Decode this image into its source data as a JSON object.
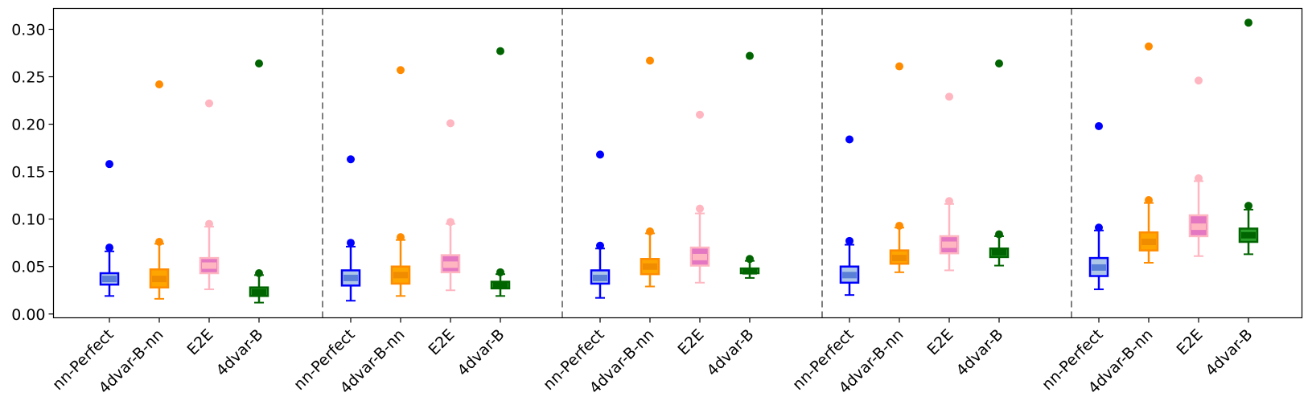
{
  "chart_data": {
    "type": "box",
    "title": "",
    "xlabel": "",
    "ylabel": "",
    "ylim": [
      -0.004,
      0.322
    ],
    "y_ticks": [
      0.0,
      0.05,
      0.1,
      0.15,
      0.2,
      0.25,
      0.3
    ],
    "y_tick_labels": [
      "0.00",
      "0.05",
      "0.10",
      "0.15",
      "0.20",
      "0.25",
      "0.30"
    ],
    "grid": false,
    "legend": "none",
    "group_separators": "dashed vertical lines between groups",
    "categories": [
      "nn-Perfect",
      "4dvar-B-nn",
      "E2E",
      "4dvar-B"
    ],
    "styles": {
      "nn-Perfect": {
        "edge": "#0000ff",
        "fill": "#aec7e8",
        "median_band": "#5a7fd6"
      },
      "4dvar-B-nn": {
        "edge": "#ff8c00",
        "fill": "#ffa500",
        "median_band": "#f08c00"
      },
      "E2E": {
        "edge": "#ffb6c1",
        "fill": "#e377c2",
        "median_band": "#ffb6c1"
      },
      "4dvar-B": {
        "edge": "#006400",
        "fill": "#2ca02c",
        "median_band": "#006400"
      }
    },
    "groups": [
      {
        "boxes": [
          {
            "name": "nn-Perfect",
            "whislo": 0.019,
            "q1": 0.031,
            "med": 0.037,
            "q3": 0.043,
            "whishi": 0.066,
            "p95": 0.07,
            "max": 0.158
          },
          {
            "name": "4dvar-B-nn",
            "whislo": 0.016,
            "q1": 0.028,
            "med": 0.037,
            "q3": 0.047,
            "whishi": 0.074,
            "p95": 0.076,
            "max": 0.242
          },
          {
            "name": "E2E",
            "whislo": 0.026,
            "q1": 0.043,
            "med": 0.051,
            "q3": 0.059,
            "whishi": 0.092,
            "p95": 0.095,
            "max": 0.222
          },
          {
            "name": "4dvar-B",
            "whislo": 0.012,
            "q1": 0.019,
            "med": 0.023,
            "q3": 0.028,
            "whishi": 0.041,
            "p95": 0.043,
            "max": 0.264
          }
        ]
      },
      {
        "boxes": [
          {
            "name": "nn-Perfect",
            "whislo": 0.014,
            "q1": 0.03,
            "med": 0.038,
            "q3": 0.046,
            "whishi": 0.071,
            "p95": 0.075,
            "max": 0.163
          },
          {
            "name": "4dvar-B-nn",
            "whislo": 0.019,
            "q1": 0.032,
            "med": 0.041,
            "q3": 0.05,
            "whishi": 0.078,
            "p95": 0.081,
            "max": 0.257
          },
          {
            "name": "E2E",
            "whislo": 0.025,
            "q1": 0.044,
            "med": 0.052,
            "q3": 0.062,
            "whishi": 0.095,
            "p95": 0.097,
            "max": 0.201
          },
          {
            "name": "4dvar-B",
            "whislo": 0.019,
            "q1": 0.027,
            "med": 0.03,
            "q3": 0.034,
            "whishi": 0.042,
            "p95": 0.044,
            "max": 0.277
          }
        ]
      },
      {
        "boxes": [
          {
            "name": "nn-Perfect",
            "whislo": 0.017,
            "q1": 0.032,
            "med": 0.038,
            "q3": 0.046,
            "whishi": 0.069,
            "p95": 0.072,
            "max": 0.168
          },
          {
            "name": "4dvar-B-nn",
            "whislo": 0.029,
            "q1": 0.042,
            "med": 0.05,
            "q3": 0.058,
            "whishi": 0.085,
            "p95": 0.087,
            "max": 0.267
          },
          {
            "name": "E2E",
            "whislo": 0.033,
            "q1": 0.051,
            "med": 0.06,
            "q3": 0.07,
            "whishi": 0.106,
            "p95": 0.111,
            "max": 0.21
          },
          {
            "name": "4dvar-B",
            "whislo": 0.038,
            "q1": 0.043,
            "med": 0.045,
            "q3": 0.048,
            "whishi": 0.056,
            "p95": 0.058,
            "max": 0.272
          }
        ]
      },
      {
        "boxes": [
          {
            "name": "nn-Perfect",
            "whislo": 0.02,
            "q1": 0.033,
            "med": 0.041,
            "q3": 0.05,
            "whishi": 0.073,
            "p95": 0.077,
            "max": 0.184
          },
          {
            "name": "4dvar-B-nn",
            "whislo": 0.044,
            "q1": 0.053,
            "med": 0.059,
            "q3": 0.067,
            "whishi": 0.091,
            "p95": 0.093,
            "max": 0.261
          },
          {
            "name": "E2E",
            "whislo": 0.046,
            "q1": 0.064,
            "med": 0.073,
            "q3": 0.082,
            "whishi": 0.116,
            "p95": 0.119,
            "max": 0.229
          },
          {
            "name": "4dvar-B",
            "whislo": 0.051,
            "q1": 0.06,
            "med": 0.065,
            "q3": 0.069,
            "whishi": 0.082,
            "p95": 0.084,
            "max": 0.264
          }
        ]
      },
      {
        "boxes": [
          {
            "name": "nn-Perfect",
            "whislo": 0.026,
            "q1": 0.04,
            "med": 0.049,
            "q3": 0.059,
            "whishi": 0.088,
            "p95": 0.091,
            "max": 0.198
          },
          {
            "name": "4dvar-B-nn",
            "whislo": 0.054,
            "q1": 0.067,
            "med": 0.076,
            "q3": 0.086,
            "whishi": 0.117,
            "p95": 0.12,
            "max": 0.282
          },
          {
            "name": "E2E",
            "whislo": 0.061,
            "q1": 0.082,
            "med": 0.092,
            "q3": 0.104,
            "whishi": 0.14,
            "p95": 0.143,
            "max": 0.246
          },
          {
            "name": "4dvar-B",
            "whislo": 0.063,
            "q1": 0.076,
            "med": 0.083,
            "q3": 0.09,
            "whishi": 0.11,
            "p95": 0.114,
            "max": 0.307
          }
        ]
      }
    ]
  }
}
